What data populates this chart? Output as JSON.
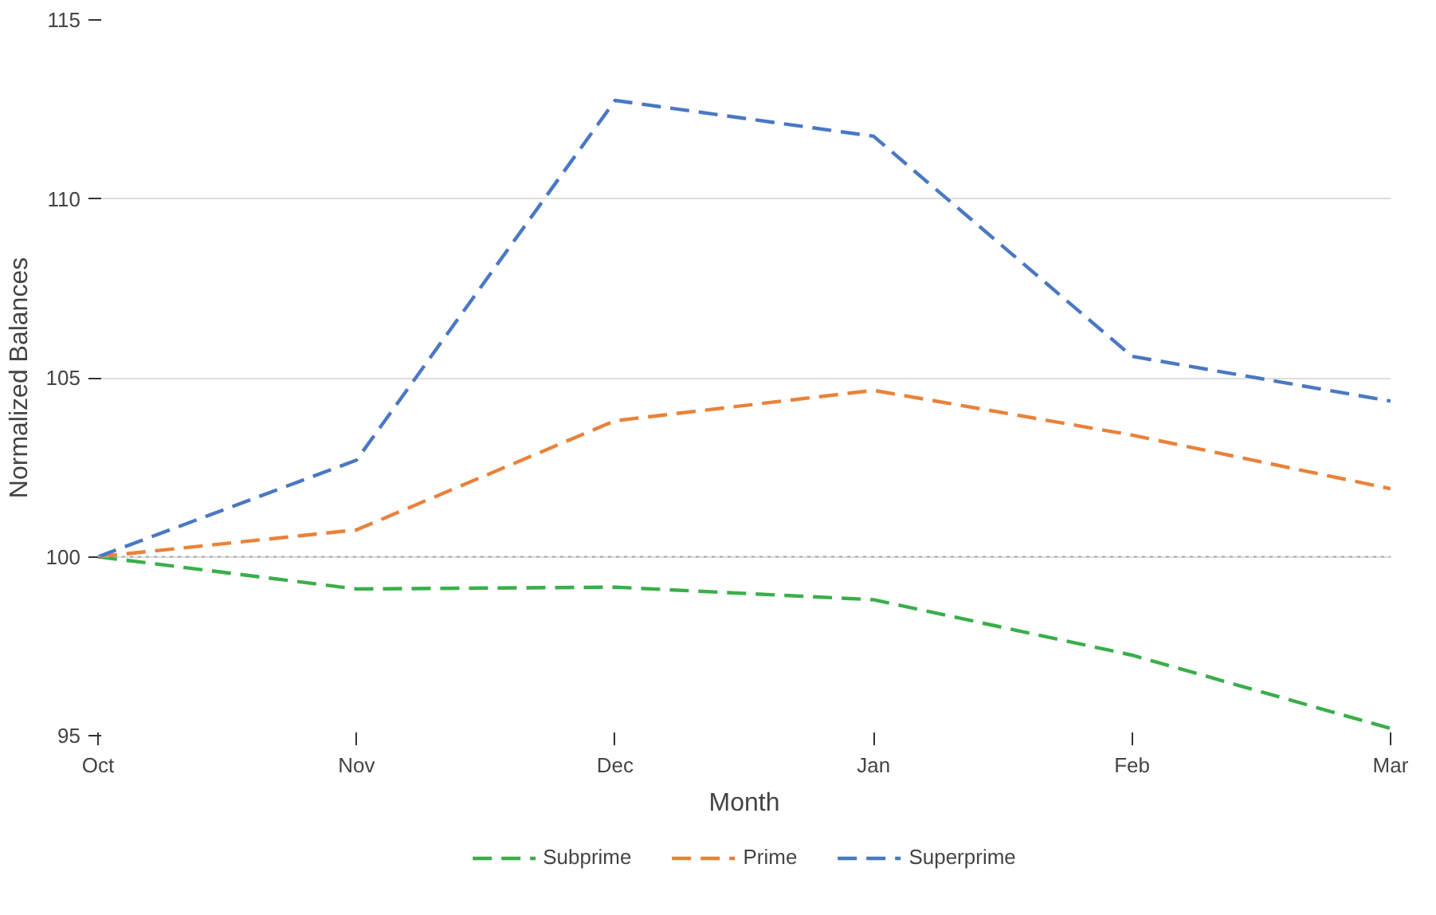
{
  "chart_data": {
    "type": "line",
    "xlabel": "Month",
    "ylabel": "Normalized Balances",
    "categories": [
      "Oct",
      "Nov",
      "Dec",
      "Jan",
      "Feb",
      "Mar"
    ],
    "series": [
      {
        "name": "Subprime",
        "color": "#3aae4a",
        "values": [
          100,
          99.1,
          99.15,
          98.8,
          97.25,
          95.2
        ]
      },
      {
        "name": "Prime",
        "color": "#e8823a",
        "values": [
          100,
          100.75,
          103.8,
          104.65,
          103.4,
          101.9
        ]
      },
      {
        "name": "Superprime",
        "color": "#4a78c2",
        "values": [
          100,
          102.7,
          112.75,
          111.75,
          105.6,
          104.35
        ]
      }
    ],
    "ylim": [
      95,
      115
    ],
    "yticks": [
      95,
      100,
      105,
      110,
      115
    ],
    "grid": "y",
    "legend": "bottom",
    "line_style": "dashed",
    "marker": "none",
    "ref_lines": [
      {
        "axis": "y",
        "value": 100,
        "label": null,
        "color": "#aaaaaa",
        "line_style": "dotted"
      }
    ]
  }
}
